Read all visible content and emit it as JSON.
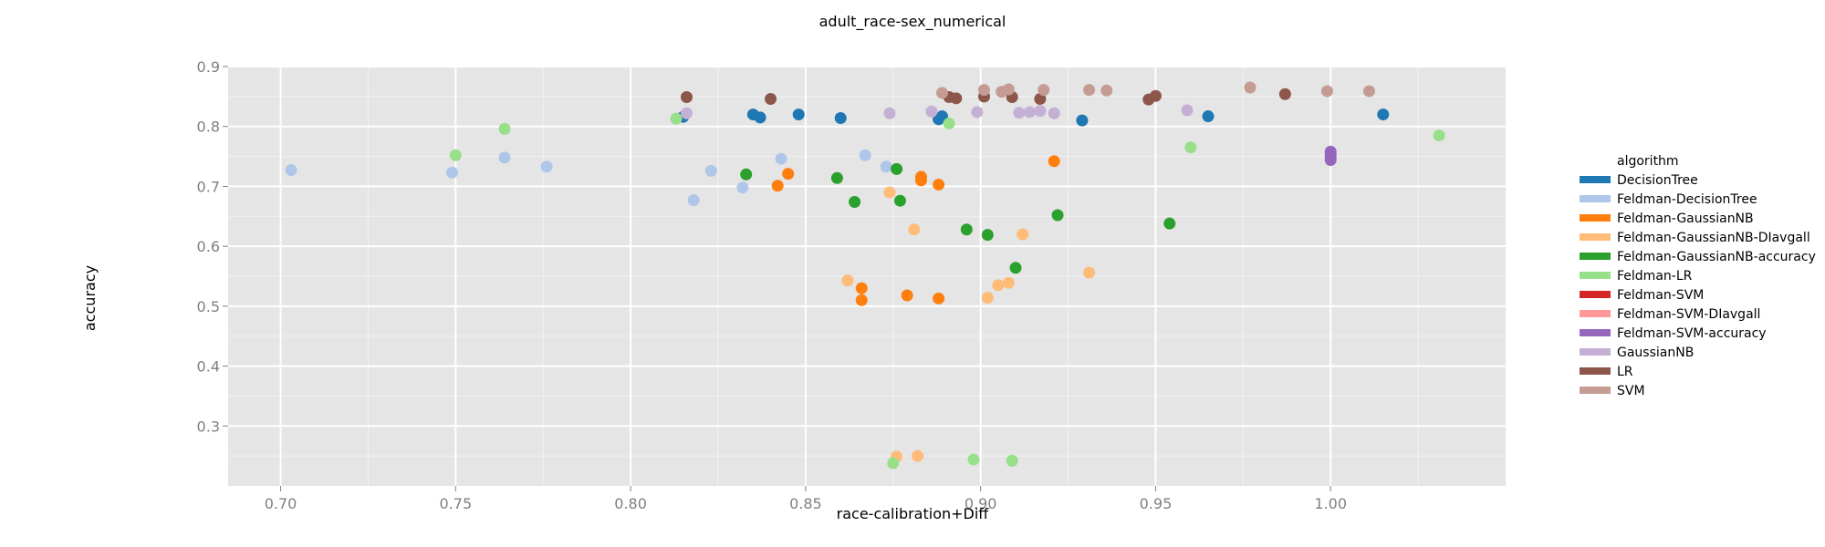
{
  "chart_data": {
    "type": "scatter",
    "title": "adult_race-sex_numerical",
    "xlabel": "race-calibration+Diff",
    "ylabel": "accuracy",
    "xlim": [
      0.685,
      1.05
    ],
    "ylim": [
      0.2,
      0.9
    ],
    "xticks": [
      "0.70",
      "0.75",
      "0.80",
      "0.85",
      "0.90",
      "0.95",
      "1.00"
    ],
    "yticks": [
      "0.3",
      "0.4",
      "0.5",
      "0.6",
      "0.7",
      "0.8",
      "0.9"
    ],
    "grid": true,
    "legend_position": "right",
    "legend_title": "algorithm",
    "series": [
      {
        "name": "DecisionTree",
        "color": "#1f77b4",
        "points": [
          [
            0.815,
            0.816
          ],
          [
            0.835,
            0.82
          ],
          [
            0.837,
            0.815
          ],
          [
            0.848,
            0.82
          ],
          [
            0.86,
            0.814
          ],
          [
            0.888,
            0.812
          ],
          [
            0.889,
            0.817
          ],
          [
            0.929,
            0.81
          ],
          [
            0.965,
            0.817
          ],
          [
            1.015,
            0.82
          ]
        ]
      },
      {
        "name": "Feldman-DecisionTree",
        "color": "#aec7e8",
        "points": [
          [
            0.703,
            0.727
          ],
          [
            0.749,
            0.723
          ],
          [
            0.764,
            0.748
          ],
          [
            0.776,
            0.733
          ],
          [
            0.818,
            0.677
          ],
          [
            0.823,
            0.726
          ],
          [
            0.832,
            0.698
          ],
          [
            0.843,
            0.746
          ],
          [
            0.867,
            0.752
          ],
          [
            0.873,
            0.733
          ]
        ]
      },
      {
        "name": "Feldman-GaussianNB",
        "color": "#ff7f0e",
        "points": [
          [
            0.842,
            0.701
          ],
          [
            0.845,
            0.721
          ],
          [
            0.866,
            0.53
          ],
          [
            0.866,
            0.51
          ],
          [
            0.879,
            0.518
          ],
          [
            0.883,
            0.716
          ],
          [
            0.883,
            0.71
          ],
          [
            0.888,
            0.703
          ],
          [
            0.888,
            0.513
          ],
          [
            0.921,
            0.742
          ]
        ]
      },
      {
        "name": "Feldman-GaussianNB-DIavgall",
        "color": "#ffbb78",
        "points": [
          [
            0.862,
            0.543
          ],
          [
            0.874,
            0.69
          ],
          [
            0.876,
            0.249
          ],
          [
            0.881,
            0.628
          ],
          [
            0.882,
            0.25
          ],
          [
            0.902,
            0.514
          ],
          [
            0.905,
            0.535
          ],
          [
            0.908,
            0.539
          ],
          [
            0.912,
            0.62
          ],
          [
            0.931,
            0.556
          ]
        ]
      },
      {
        "name": "Feldman-GaussianNB-accuracy",
        "color": "#2ca02c",
        "points": [
          [
            0.833,
            0.72
          ],
          [
            0.859,
            0.714
          ],
          [
            0.864,
            0.674
          ],
          [
            0.876,
            0.729
          ],
          [
            0.877,
            0.676
          ],
          [
            0.896,
            0.628
          ],
          [
            0.902,
            0.619
          ],
          [
            0.91,
            0.564
          ],
          [
            0.922,
            0.652
          ],
          [
            0.954,
            0.638
          ]
        ]
      },
      {
        "name": "Feldman-LR",
        "color": "#98df8a",
        "points": [
          [
            0.75,
            0.752
          ],
          [
            0.764,
            0.796
          ],
          [
            0.813,
            0.813
          ],
          [
            0.875,
            0.238
          ],
          [
            0.891,
            0.805
          ],
          [
            0.898,
            0.244
          ],
          [
            0.909,
            0.242
          ],
          [
            0.96,
            0.765
          ],
          [
            1.031,
            0.785
          ]
        ]
      },
      {
        "name": "Feldman-SVM",
        "color": "#d62728",
        "points": []
      },
      {
        "name": "Feldman-SVM-DIavgall",
        "color": "#ff9896",
        "points": []
      },
      {
        "name": "Feldman-SVM-accuracy",
        "color": "#9467bd",
        "points": [
          [
            1.0,
            0.744
          ],
          [
            1.0,
            0.749
          ],
          [
            1.0,
            0.754
          ],
          [
            1.0,
            0.758
          ]
        ]
      },
      {
        "name": "GaussianNB",
        "color": "#c5b0d5",
        "points": [
          [
            0.816,
            0.822
          ],
          [
            0.874,
            0.822
          ],
          [
            0.886,
            0.825
          ],
          [
            0.899,
            0.824
          ],
          [
            0.911,
            0.823
          ],
          [
            0.914,
            0.824
          ],
          [
            0.917,
            0.826
          ],
          [
            0.921,
            0.822
          ],
          [
            0.959,
            0.827
          ]
        ]
      },
      {
        "name": "LR",
        "color": "#8c564b",
        "points": [
          [
            0.816,
            0.849
          ],
          [
            0.84,
            0.846
          ],
          [
            0.891,
            0.849
          ],
          [
            0.893,
            0.847
          ],
          [
            0.901,
            0.85
          ],
          [
            0.909,
            0.849
          ],
          [
            0.917,
            0.846
          ],
          [
            0.948,
            0.845
          ],
          [
            0.95,
            0.851
          ],
          [
            0.987,
            0.854
          ]
        ]
      },
      {
        "name": "SVM",
        "color": "#c49c94",
        "points": [
          [
            0.889,
            0.856
          ],
          [
            0.901,
            0.861
          ],
          [
            0.906,
            0.858
          ],
          [
            0.908,
            0.862
          ],
          [
            0.918,
            0.861
          ],
          [
            0.931,
            0.861
          ],
          [
            0.936,
            0.86
          ],
          [
            0.977,
            0.865
          ],
          [
            0.999,
            0.859
          ],
          [
            1.011,
            0.859
          ]
        ]
      }
    ]
  }
}
